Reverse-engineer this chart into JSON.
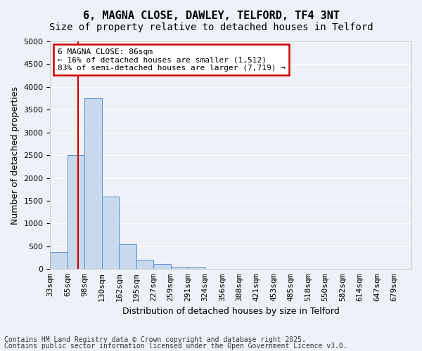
{
  "title": "6, MAGNA CLOSE, DAWLEY, TELFORD, TF4 3NT",
  "subtitle": "Size of property relative to detached houses in Telford",
  "xlabel": "Distribution of detached houses by size in Telford",
  "ylabel": "Number of detached properties",
  "tick_labels": [
    "33sqm",
    "65sqm",
    "98sqm",
    "130sqm",
    "162sqm",
    "195sqm",
    "227sqm",
    "259sqm",
    "291sqm",
    "324sqm",
    "356sqm",
    "388sqm",
    "421sqm",
    "453sqm",
    "485sqm",
    "518sqm",
    "550sqm",
    "582sqm",
    "614sqm",
    "647sqm",
    "679sqm"
  ],
  "bar_values": [
    380,
    2500,
    3750,
    1600,
    550,
    200,
    120,
    50,
    30,
    10,
    5,
    2,
    0,
    0,
    0,
    0,
    0,
    0,
    0,
    0
  ],
  "bar_color": "#c9d9ed",
  "bar_edge_color": "#5b8fc9",
  "ylim": [
    0,
    5000
  ],
  "yticks": [
    0,
    500,
    1000,
    1500,
    2000,
    2500,
    3000,
    3500,
    4000,
    4500,
    5000
  ],
  "property_line_color": "#cc0000",
  "annotation_text": "6 MAGNA CLOSE: 86sqm\n← 16% of detached houses are smaller (1,512)\n83% of semi-detached houses are larger (7,719) →",
  "annotation_box_color": "#cc0000",
  "footer_line1": "Contains HM Land Registry data © Crown copyright and database right 2025.",
  "footer_line2": "Contains public sector information licensed under the Open Government Licence v3.0.",
  "background_color": "#eef2f8",
  "grid_color": "#ffffff",
  "title_fontsize": 11,
  "subtitle_fontsize": 10,
  "axis_label_fontsize": 9,
  "tick_fontsize": 8,
  "annotation_fontsize": 8,
  "footer_fontsize": 7
}
